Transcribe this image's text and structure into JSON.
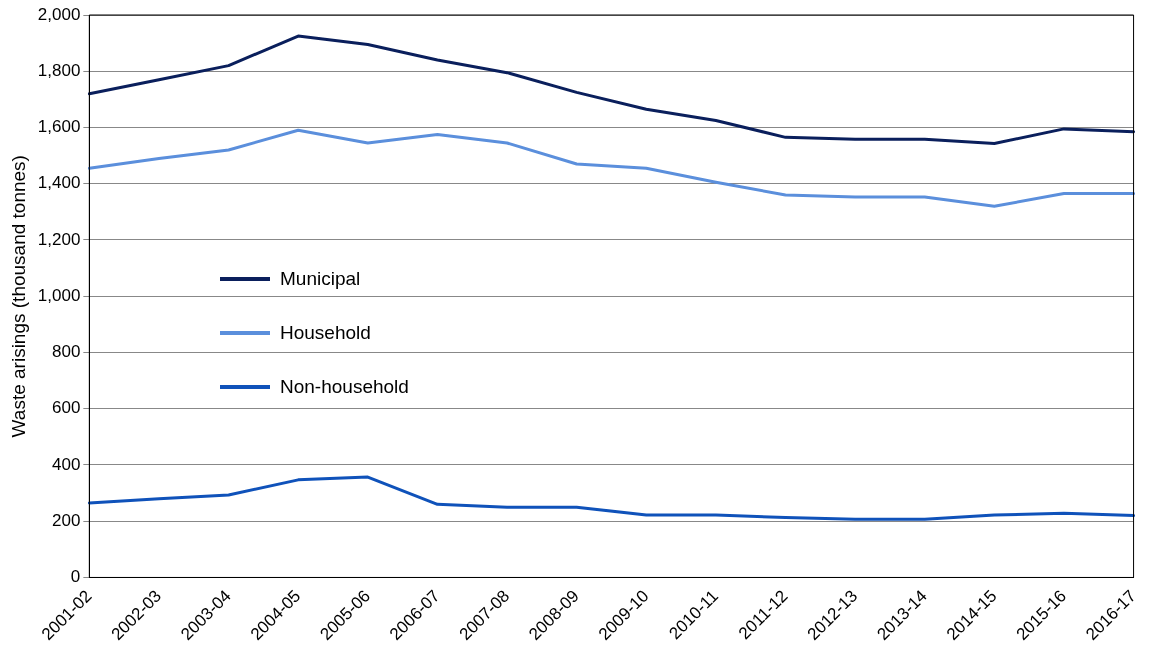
{
  "chart_data": {
    "type": "line",
    "ylabel": "Waste arisings (thousand tonnes)",
    "categories": [
      "2001-02",
      "2002-03",
      "2003-04",
      "2004-05",
      "2005-06",
      "2006-07",
      "2007-08",
      "2008-09",
      "2009-10",
      "2010-11",
      "2011-12",
      "2012-13",
      "2013-14",
      "2014-15",
      "2015-16",
      "2016-17"
    ],
    "series": [
      {
        "name": "Municipal",
        "color": "#0a1f5c",
        "values": [
          1720,
          1770,
          1820,
          1925,
          1895,
          1840,
          1795,
          1725,
          1665,
          1625,
          1565,
          1558,
          1558,
          1543,
          1595,
          1585
        ]
      },
      {
        "name": "Household",
        "color": "#5b8fdc",
        "values": [
          1455,
          1490,
          1520,
          1590,
          1545,
          1575,
          1545,
          1470,
          1455,
          1405,
          1360,
          1353,
          1353,
          1320,
          1365,
          1365
        ]
      },
      {
        "name": "Non-household",
        "color": "#0f52ba",
        "values": [
          265,
          280,
          293,
          347,
          357,
          260,
          250,
          250,
          222,
          222,
          213,
          207,
          207,
          222,
          228,
          220
        ]
      }
    ],
    "ylim": [
      0,
      2000
    ],
    "yticks": [
      0,
      200,
      400,
      600,
      800,
      {
        "value": 1000,
        "label": "1,000"
      },
      {
        "value": 1200,
        "label": "1,200"
      },
      {
        "value": 1400,
        "label": "1,400"
      },
      {
        "value": 1600,
        "label": "1,600"
      },
      {
        "value": 1800,
        "label": "1,800"
      },
      {
        "value": 2000,
        "label": "2,000"
      }
    ],
    "grid": "y",
    "legend": "left",
    "marker": "none",
    "line_style": "solid"
  }
}
